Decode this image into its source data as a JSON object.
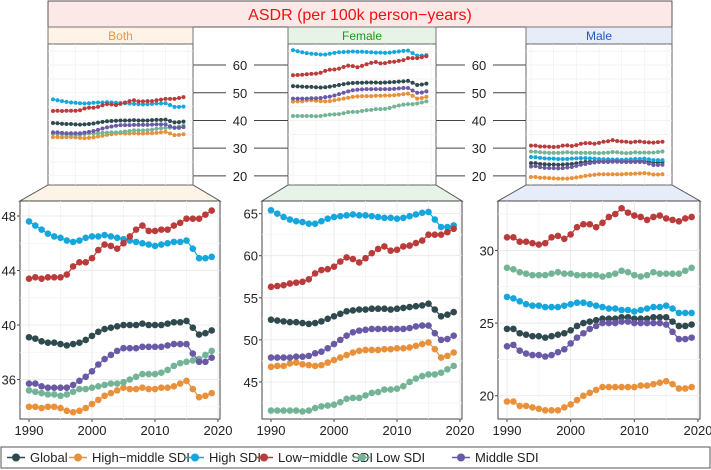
{
  "title": "ASDR (per 100k person−years)",
  "colors": {
    "title_bg": "#fde8e8",
    "title_text": "#ee1111",
    "Both_strip": "#fdf3e6",
    "Both_text": "#f0963a",
    "Female_strip": "#e6f3e6",
    "Female_text": "#1a9a1a",
    "Male_strip": "#e6ecf8",
    "Male_text": "#2255cc"
  },
  "legend": [
    {
      "label": "Global",
      "color": "#2f4a4f"
    },
    {
      "label": "High−middle SDI",
      "color": "#e8913a"
    },
    {
      "label": "High SDI",
      "color": "#14a6dc"
    },
    {
      "label": "Low−middle SDI",
      "color": "#bb3b3b"
    },
    {
      "label": "Low SDI",
      "color": "#74b496"
    },
    {
      "label": "Middle SDI",
      "color": "#6a5aa6"
    }
  ],
  "chart_data": [
    {
      "type": "line",
      "panel": "Both",
      "x": [
        1990,
        1991,
        1992,
        1993,
        1994,
        1995,
        1996,
        1997,
        1998,
        1999,
        2000,
        2001,
        2002,
        2003,
        2004,
        2005,
        2006,
        2007,
        2008,
        2009,
        2010,
        2011,
        2012,
        2013,
        2014,
        2015,
        2016,
        2017,
        2018,
        2019
      ],
      "xticks": [
        "1990",
        "2000",
        "2010",
        "2020"
      ],
      "yticks": [
        "36",
        "40",
        "44",
        "48"
      ],
      "ylim": [
        33.1,
        49.1
      ],
      "grid": true,
      "series": [
        {
          "name": "Global",
          "values": [
            39.1,
            39.0,
            38.8,
            38.7,
            38.7,
            38.6,
            38.5,
            38.6,
            38.7,
            38.9,
            39.2,
            39.5,
            39.7,
            39.8,
            39.9,
            40.0,
            40.0,
            40.0,
            40.1,
            40.0,
            40.0,
            40.0,
            40.1,
            40.2,
            40.2,
            40.3,
            39.8,
            39.3,
            39.4,
            39.6
          ]
        },
        {
          "name": "High−middle SDI",
          "values": [
            34.0,
            34.0,
            33.9,
            34.0,
            34.0,
            33.9,
            33.7,
            33.6,
            33.7,
            33.9,
            34.2,
            34.5,
            34.8,
            35.0,
            35.2,
            35.4,
            35.3,
            35.3,
            35.4,
            35.3,
            35.3,
            35.4,
            35.4,
            35.5,
            35.7,
            35.9,
            35.3,
            34.7,
            34.8,
            35.0
          ]
        },
        {
          "name": "High SDI",
          "values": [
            47.6,
            47.3,
            47.0,
            46.7,
            46.5,
            46.4,
            46.2,
            46.1,
            46.2,
            46.4,
            46.5,
            46.5,
            46.6,
            46.5,
            46.4,
            46.3,
            46.2,
            46.1,
            46.0,
            45.9,
            45.8,
            45.9,
            46.0,
            46.1,
            46.1,
            46.2,
            45.6,
            44.9,
            44.9,
            45.0
          ]
        },
        {
          "name": "Low−middle SDI",
          "values": [
            43.4,
            43.5,
            43.4,
            43.5,
            43.5,
            43.5,
            43.7,
            44.3,
            44.6,
            44.6,
            44.9,
            45.5,
            45.9,
            45.8,
            45.6,
            46.0,
            46.5,
            47.0,
            47.3,
            46.9,
            46.9,
            47.0,
            47.0,
            47.3,
            47.5,
            47.8,
            47.8,
            47.8,
            48.1,
            48.4
          ]
        },
        {
          "name": "Low SDI",
          "values": [
            35.2,
            35.1,
            35.0,
            34.9,
            34.9,
            34.8,
            34.9,
            35.1,
            35.3,
            35.3,
            35.4,
            35.5,
            35.6,
            35.7,
            35.7,
            35.8,
            36.0,
            36.2,
            36.4,
            36.4,
            36.4,
            36.5,
            36.7,
            37.0,
            37.2,
            37.3,
            37.4,
            37.5,
            37.8,
            38.1
          ]
        },
        {
          "name": "Middle SDI",
          "values": [
            35.7,
            35.7,
            35.5,
            35.4,
            35.4,
            35.4,
            35.4,
            35.6,
            35.9,
            36.2,
            36.6,
            37.1,
            37.5,
            37.8,
            38.1,
            38.3,
            38.3,
            38.3,
            38.4,
            38.4,
            38.4,
            38.4,
            38.5,
            38.6,
            38.6,
            38.6,
            37.9,
            37.3,
            37.3,
            37.6
          ]
        }
      ]
    },
    {
      "type": "line",
      "panel": "Female",
      "x": [
        1990,
        1991,
        1992,
        1993,
        1994,
        1995,
        1996,
        1997,
        1998,
        1999,
        2000,
        2001,
        2002,
        2003,
        2004,
        2005,
        2006,
        2007,
        2008,
        2009,
        2010,
        2011,
        2012,
        2013,
        2014,
        2015,
        2016,
        2017,
        2018,
        2019
      ],
      "xticks": [
        "1990",
        "2000",
        "2010",
        "2020"
      ],
      "yticks": [
        "45",
        "50",
        "55",
        "60",
        "65"
      ],
      "ylim": [
        40.6,
        66.5
      ],
      "grid": true,
      "series": [
        {
          "name": "Global",
          "values": [
            52.4,
            52.3,
            52.2,
            52.1,
            52.1,
            52.0,
            51.9,
            52.0,
            52.2,
            52.5,
            52.8,
            53.1,
            53.4,
            53.5,
            53.6,
            53.6,
            53.7,
            53.7,
            53.7,
            53.6,
            53.7,
            53.8,
            53.9,
            54.0,
            54.1,
            54.3,
            53.6,
            52.8,
            53.0,
            53.3
          ]
        },
        {
          "name": "High−middle SDI",
          "values": [
            46.8,
            46.9,
            46.9,
            47.2,
            47.3,
            47.1,
            47.0,
            46.9,
            47.0,
            47.3,
            47.6,
            47.9,
            48.2,
            48.5,
            48.7,
            48.8,
            48.8,
            48.8,
            48.9,
            48.9,
            49.0,
            49.0,
            49.1,
            49.3,
            49.5,
            49.7,
            48.9,
            47.9,
            48.1,
            48.5
          ]
        },
        {
          "name": "High SDI",
          "values": [
            65.4,
            65.0,
            64.6,
            64.3,
            64.1,
            64.0,
            63.8,
            63.8,
            64.1,
            64.4,
            64.6,
            64.7,
            64.8,
            64.9,
            64.8,
            64.8,
            64.7,
            64.6,
            64.5,
            64.5,
            64.4,
            64.5,
            64.7,
            64.9,
            65.1,
            65.2,
            64.3,
            63.4,
            63.4,
            63.6
          ]
        },
        {
          "name": "Low−middle SDI",
          "values": [
            56.3,
            56.4,
            56.5,
            56.7,
            56.8,
            56.9,
            57.2,
            57.9,
            58.3,
            58.4,
            58.7,
            59.3,
            59.8,
            59.6,
            59.2,
            59.7,
            60.3,
            60.8,
            61.1,
            60.6,
            60.7,
            61.1,
            61.2,
            61.5,
            61.8,
            62.5,
            62.5,
            62.5,
            62.8,
            63.2
          ]
        },
        {
          "name": "Low SDI",
          "values": [
            41.6,
            41.6,
            41.6,
            41.6,
            41.6,
            41.5,
            41.6,
            41.9,
            42.1,
            42.2,
            42.3,
            42.6,
            43.0,
            43.1,
            43.1,
            43.4,
            43.7,
            43.8,
            44.1,
            44.1,
            44.2,
            44.5,
            45.0,
            45.4,
            45.7,
            45.9,
            45.9,
            46.1,
            46.5,
            46.9
          ]
        },
        {
          "name": "Middle SDI",
          "values": [
            47.9,
            47.9,
            47.9,
            47.9,
            48.0,
            48.0,
            48.1,
            48.4,
            48.6,
            49.0,
            49.5,
            50.0,
            50.5,
            50.9,
            51.1,
            51.2,
            51.3,
            51.3,
            51.3,
            51.3,
            51.3,
            51.3,
            51.4,
            51.6,
            51.7,
            51.7,
            50.8,
            50.0,
            50.1,
            50.5
          ]
        }
      ]
    },
    {
      "type": "line",
      "panel": "Male",
      "x": [
        1990,
        1991,
        1992,
        1993,
        1994,
        1995,
        1996,
        1997,
        1998,
        1999,
        2000,
        2001,
        2002,
        2003,
        2004,
        2005,
        2006,
        2007,
        2008,
        2009,
        2010,
        2011,
        2012,
        2013,
        2014,
        2015,
        2016,
        2017,
        2018,
        2019
      ],
      "xticks": [
        "1990",
        "2000",
        "2010",
        "2020"
      ],
      "yticks": [
        "20",
        "25",
        "30"
      ],
      "ylim": [
        18.4,
        33.4
      ],
      "grid": true,
      "series": [
        {
          "name": "Global",
          "values": [
            24.6,
            24.6,
            24.3,
            24.2,
            24.1,
            24.1,
            24.0,
            24.1,
            24.2,
            24.3,
            24.5,
            24.8,
            25.0,
            25.1,
            25.2,
            25.3,
            25.3,
            25.3,
            25.4,
            25.4,
            25.3,
            25.3,
            25.3,
            25.4,
            25.4,
            25.4,
            25.1,
            24.8,
            24.8,
            24.9
          ]
        },
        {
          "name": "High−middle SDI",
          "values": [
            19.6,
            19.6,
            19.3,
            19.3,
            19.2,
            19.1,
            19.0,
            19.0,
            19.0,
            19.2,
            19.4,
            19.7,
            20.0,
            20.2,
            20.4,
            20.6,
            20.6,
            20.6,
            20.6,
            20.6,
            20.6,
            20.7,
            20.7,
            20.8,
            20.9,
            21.0,
            20.8,
            20.5,
            20.5,
            20.6
          ]
        },
        {
          "name": "High SDI",
          "values": [
            26.8,
            26.7,
            26.5,
            26.3,
            26.2,
            26.2,
            26.1,
            26.1,
            26.1,
            26.2,
            26.3,
            26.4,
            26.4,
            26.3,
            26.2,
            26.1,
            26.0,
            26.0,
            25.9,
            25.9,
            25.8,
            25.9,
            26.0,
            26.1,
            26.1,
            26.2,
            26.0,
            25.7,
            25.7,
            25.7
          ]
        },
        {
          "name": "Low−middle SDI",
          "values": [
            30.9,
            30.9,
            30.6,
            30.6,
            30.5,
            30.4,
            30.5,
            30.9,
            31.0,
            30.8,
            31.1,
            31.6,
            31.8,
            31.8,
            31.6,
            31.9,
            32.3,
            32.5,
            32.9,
            32.6,
            32.4,
            32.3,
            32.1,
            32.3,
            32.4,
            32.2,
            32.1,
            32.0,
            32.2,
            32.3
          ]
        },
        {
          "name": "Low SDI",
          "values": [
            28.8,
            28.7,
            28.5,
            28.4,
            28.3,
            28.3,
            28.3,
            28.4,
            28.5,
            28.4,
            28.4,
            28.3,
            28.3,
            28.3,
            28.3,
            28.2,
            28.3,
            28.4,
            28.6,
            28.5,
            28.3,
            28.2,
            28.3,
            28.5,
            28.4,
            28.4,
            28.4,
            28.4,
            28.6,
            28.8
          ]
        },
        {
          "name": "Middle SDI",
          "values": [
            23.4,
            23.5,
            23.1,
            22.9,
            22.8,
            22.8,
            22.7,
            22.8,
            23.0,
            23.2,
            23.6,
            24.0,
            24.3,
            24.6,
            24.8,
            25.0,
            25.0,
            25.0,
            25.1,
            25.1,
            25.0,
            25.0,
            25.0,
            25.0,
            25.0,
            24.9,
            24.4,
            23.9,
            23.9,
            24.0
          ]
        }
      ]
    }
  ],
  "overview": {
    "yticks": [
      "20",
      "30",
      "40",
      "50",
      "60"
    ],
    "ylim": [
      16.7,
      67.6
    ]
  }
}
